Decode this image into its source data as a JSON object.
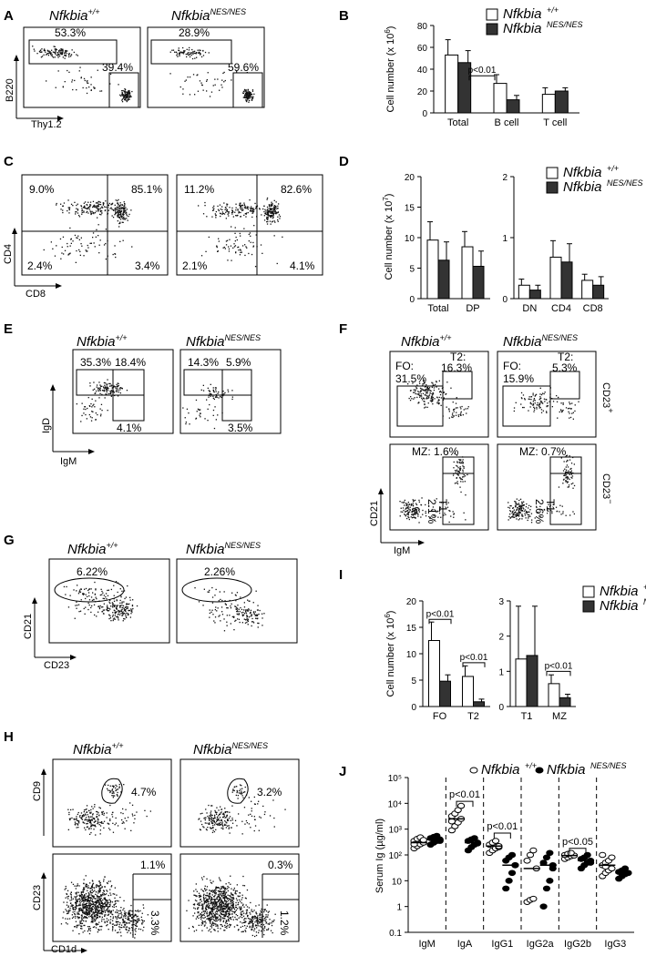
{
  "genotypes": {
    "wt": "Nfkbia",
    "wt_sup": "+/+",
    "mut": "Nfkbia",
    "mut_sup": "NES/NES"
  },
  "panelA": {
    "label": "A",
    "x_axis": "Thy1.2",
    "y_axis": "B220",
    "wt": [
      "53.3%",
      "39.4%"
    ],
    "mut": [
      "28.9%",
      "59.6%"
    ]
  },
  "panelB": {
    "label": "B",
    "chart_data": {
      "type": "bar",
      "ylabel": "Cell number (x 10",
      "ylabel_sup": "6",
      "ylabel_end": ")",
      "categories": [
        "Total",
        "B cell",
        "T cell"
      ],
      "ylim": [
        0,
        80
      ],
      "yticks": [
        "0",
        "20",
        "40",
        "60",
        "80"
      ],
      "series": [
        {
          "name": "Nfkbia+/+",
          "values": [
            53,
            27,
            17
          ],
          "err": [
            14,
            8,
            6
          ]
        },
        {
          "name": "NfkbiaNES/NES",
          "values": [
            46,
            12,
            20
          ],
          "err": [
            11,
            4,
            3
          ]
        }
      ],
      "annotations": [
        "p<0.01"
      ]
    }
  },
  "panelC": {
    "label": "C",
    "x_axis": "CD8",
    "y_axis": "CD4",
    "wt": [
      "9.0%",
      "85.1%",
      "2.4%",
      "3.4%"
    ],
    "mut": [
      "11.2%",
      "82.6%",
      "2.1%",
      "4.1%"
    ]
  },
  "panelD": {
    "label": "D",
    "chart_data": {
      "type": "bar",
      "ylabel": "Cell number (x 10",
      "ylabel_sup": "7",
      "ylabel_end": ")",
      "left": {
        "categories": [
          "Total",
          "DP"
        ],
        "ylim": [
          0,
          20
        ],
        "yticks": [
          "0",
          "5",
          "10",
          "15",
          "20"
        ],
        "series": [
          {
            "values": [
              9.6,
              8.5
            ],
            "err": [
              3,
              2.5
            ]
          },
          {
            "values": [
              6.3,
              5.3
            ],
            "err": [
              3,
              2.5
            ]
          }
        ]
      },
      "right": {
        "categories": [
          "DN",
          "CD4",
          "CD8"
        ],
        "ylim": [
          0,
          2
        ],
        "yticks": [
          "0",
          "1",
          "2"
        ],
        "series": [
          {
            "values": [
              0.22,
              0.68,
              0.3
            ],
            "err": [
              0.1,
              0.27,
              0.1
            ]
          },
          {
            "values": [
              0.14,
              0.6,
              0.22
            ],
            "err": [
              0.08,
              0.3,
              0.14
            ]
          }
        ]
      }
    }
  },
  "panelE": {
    "label": "E",
    "x_axis": "IgM",
    "y_axis": "IgD",
    "wt": [
      "35.3%",
      "18.4%",
      "4.1%"
    ],
    "mut": [
      "14.3%",
      "5.9%",
      "3.5%"
    ]
  },
  "panelF": {
    "label": "F",
    "x_axis": "IgM",
    "y_axis": "CD21",
    "row1": "CD23",
    "row1_sup": "+",
    "row2": "CD23",
    "row2_sup": "−",
    "wt": {
      "fo": "FO:",
      "fo_v": "31.5%",
      "t2": "T2:",
      "t2_v": "16.3%",
      "mz": "MZ:  1.6%",
      "t1": "T1:",
      "t1_v": "2.1%"
    },
    "mut": {
      "fo": "FO:",
      "fo_v": "15.9%",
      "t2": "T2:",
      "t2_v": "5.3%",
      "mz": "MZ:  0.7%",
      "t1": "T1:",
      "t1_v": "2.6%"
    }
  },
  "panelG": {
    "label": "G",
    "x_axis": "CD23",
    "y_axis": "CD21",
    "wt": "6.22%",
    "mut": "2.26%"
  },
  "panelH": {
    "label": "H",
    "x_axis": "CD1d",
    "y_axis1": "CD9",
    "y_axis2": "CD23",
    "wt": [
      "4.7%",
      "1.1%",
      "3.3%"
    ],
    "mut": [
      "3.2%",
      "0.3%",
      "1.2%"
    ]
  },
  "panelI": {
    "label": "I",
    "chart_data": {
      "type": "bar",
      "ylabel": "Cell number (x 10",
      "ylabel_sup": "6",
      "ylabel_end": ")",
      "left": {
        "categories": [
          "FO",
          "T2"
        ],
        "ylim": [
          0,
          20
        ],
        "yticks": [
          "0",
          "5",
          "10",
          "15",
          "20"
        ],
        "series": [
          {
            "values": [
              12.5,
              5.7
            ],
            "err": [
              3.5,
              2
            ]
          },
          {
            "values": [
              4.8,
              0.9
            ],
            "err": [
              1.2,
              0.5
            ]
          }
        ]
      },
      "right": {
        "categories": [
          "T1",
          "MZ"
        ],
        "ylim": [
          0,
          3
        ],
        "yticks": [
          "0",
          "1",
          "2",
          "3"
        ],
        "series": [
          {
            "values": [
              1.35,
              0.65
            ],
            "err": [
              1.5,
              0.25
            ]
          },
          {
            "values": [
              1.45,
              0.25
            ],
            "err": [
              1.4,
              0.1
            ]
          }
        ]
      },
      "annotations": [
        "p<0.01",
        "p<0.01",
        "p<0.01"
      ]
    }
  },
  "panelJ": {
    "label": "J",
    "chart_data": {
      "type": "scatter",
      "ylabel": "Serum Ig (µg/ml)",
      "yscale": "log",
      "yticks": [
        "0.1",
        "1",
        "10",
        "10²",
        "10³",
        "10⁴",
        "10⁵"
      ],
      "categories": [
        "IgM",
        "IgA",
        "IgG1",
        "IgG2a",
        "IgG2b",
        "IgG3"
      ],
      "series": [
        {
          "name": "Nfkbia+/+",
          "values": [
            [
              180,
              220,
              260,
              300,
              350,
              420,
              480,
              380,
              260
            ],
            [
              900,
              1300,
              1800,
              2500,
              3200,
              4000,
              5500,
              8000,
              2000
            ],
            [
              120,
              150,
              180,
              200,
              250,
              300,
              350,
              220
            ],
            [
              1.5,
              1.8,
              2,
              30,
              60,
              100,
              150
            ],
            [
              70,
              80,
              90,
              95,
              100,
              110,
              120
            ],
            [
              15,
              20,
              25,
              30,
              40,
              50,
              60,
              80,
              100,
              35
            ]
          ]
        },
        {
          "name": "NfkbiaNES/NES",
          "values": [
            [
              250,
              300,
              350,
              400,
              450,
              500,
              550,
              350
            ],
            [
              150,
              200,
              250,
              300,
              350,
              400,
              450,
              280
            ],
            [
              5,
              10,
              20,
              40,
              60,
              80,
              100,
              40
            ],
            [
              1,
              5,
              10,
              30,
              50,
              80,
              120,
              40
            ],
            [
              30,
              40,
              50,
              60,
              70,
              80,
              100,
              50
            ],
            [
              12,
              15,
              18,
              20,
              22,
              25,
              30,
              20
            ]
          ]
        }
      ],
      "annotations": [
        "p<0.01",
        "p<0.01",
        "p<0.05"
      ]
    }
  }
}
